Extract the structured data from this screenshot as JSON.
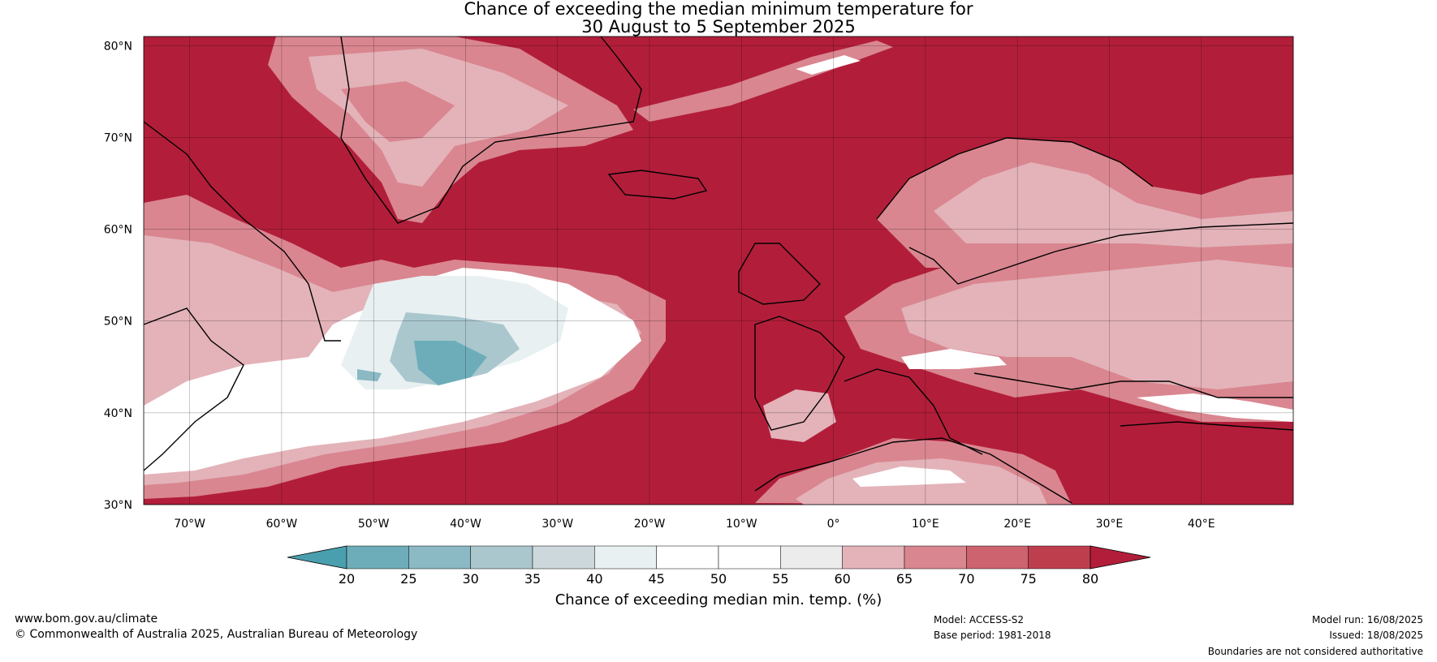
{
  "title": {
    "line1": "Chance of exceeding the median minimum temperature for",
    "line2": "30 August to 5 September 2025"
  },
  "map": {
    "lat_labels": [
      "80°N",
      "70°N",
      "60°N",
      "50°N",
      "40°N",
      "30°N"
    ],
    "lon_labels": [
      "70°W",
      "60°W",
      "50°W",
      "40°W",
      "30°W",
      "20°W",
      "10°W",
      "0°",
      "10°E",
      "20°E",
      "30°E",
      "40°E"
    ],
    "ocean_color": "#b21e3a"
  },
  "colorbar": {
    "label": "Chance of exceeding median min. temp. (%)",
    "ticks": [
      "20",
      "25",
      "30",
      "35",
      "40",
      "45",
      "50",
      "55",
      "60",
      "65",
      "70",
      "75",
      "80"
    ],
    "colors": [
      "#4a9fae",
      "#6dadb9",
      "#8bb9c4",
      "#aac7ce",
      "#cdd8dc",
      "#e9f0f1",
      "#ffffff",
      "#ffffff",
      "#ececec",
      "#e3b3b9",
      "#d98690",
      "#cc636e",
      "#bf3e4e",
      "#b21e3a"
    ]
  },
  "footer": {
    "website": "www.bom.gov.au/climate",
    "copyright": "© Commonwealth of Australia 2025, Australian Bureau of Meteorology",
    "model": "Model: ACCESS-S2",
    "base_period": "Base period: 1981-2018",
    "model_run": "Model run: 16/08/2025",
    "issued": "Issued: 18/08/2025",
    "disclaimer": "Boundaries are not considered authoritative"
  }
}
